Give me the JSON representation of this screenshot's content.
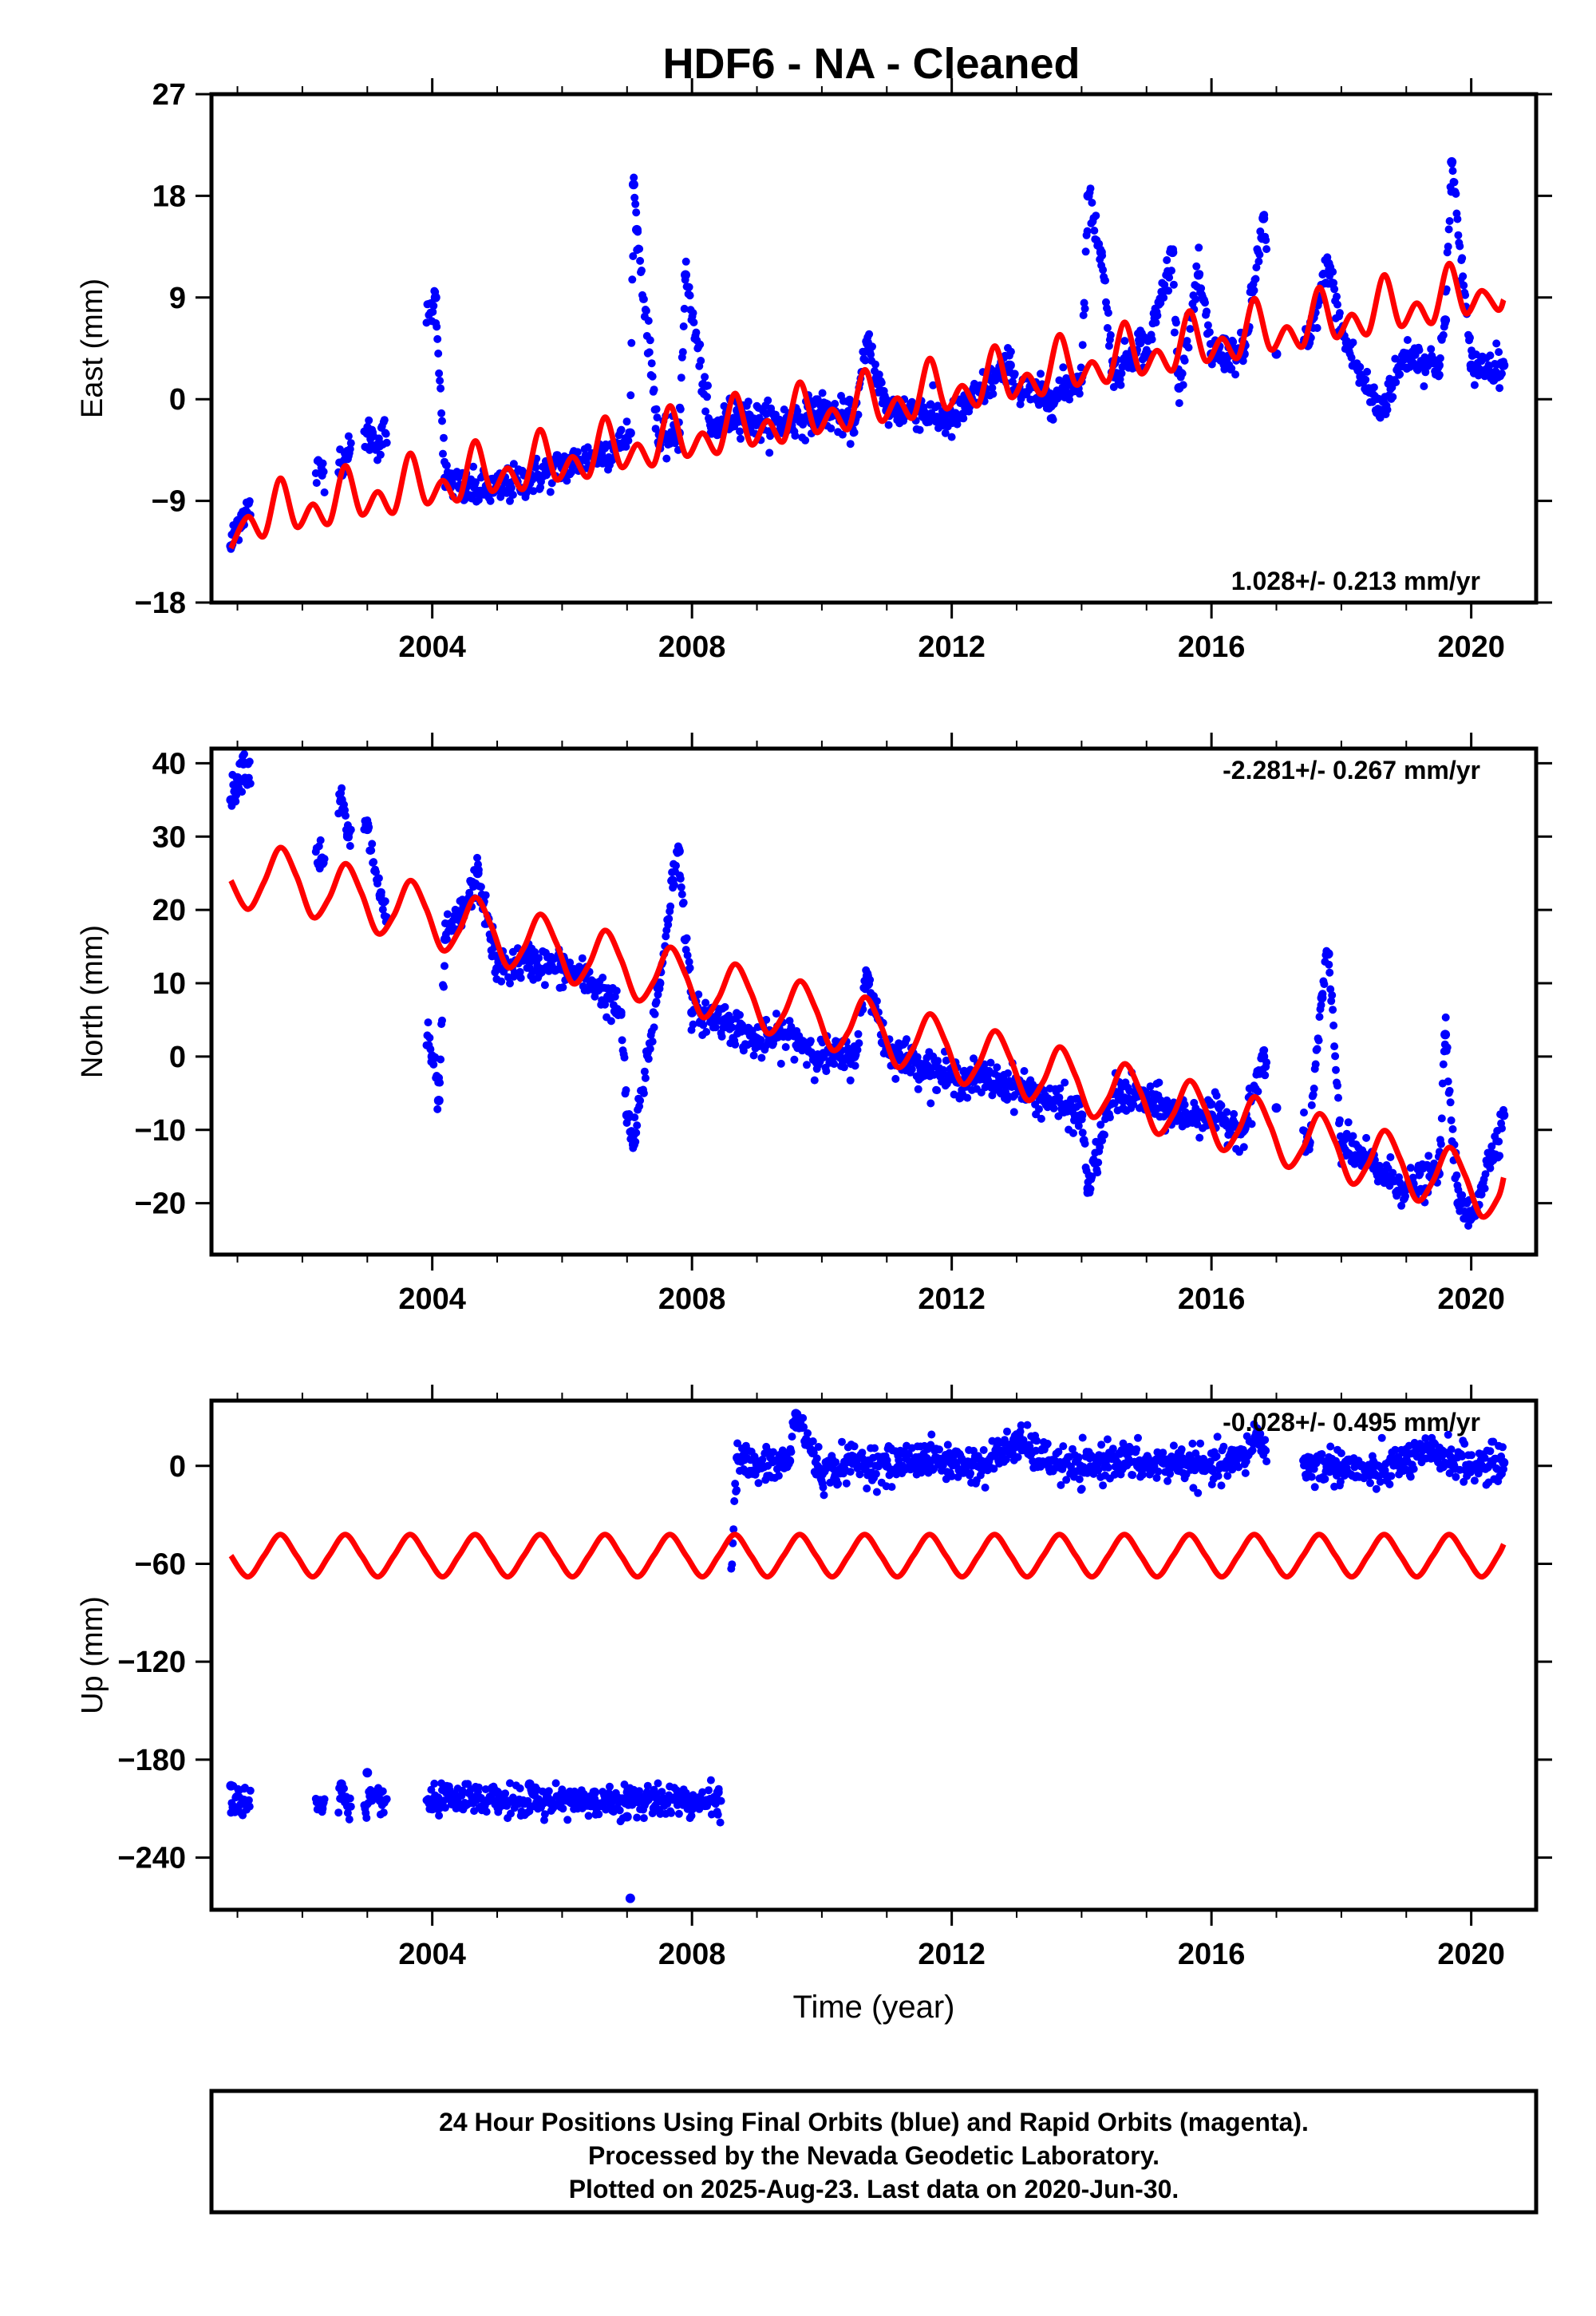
{
  "title": "HDF6  - NA - Cleaned",
  "footer": {
    "lines": [
      "24 Hour Positions Using Final Orbits (blue) and Rapid Orbits (magenta).",
      "Processed by the Nevada Geodetic Laboratory.",
      "Plotted on 2025-Aug-23. Last data on 2020-Jun-30."
    ]
  },
  "colors": {
    "data": "#0000ff",
    "model": "#ff0000",
    "frame": "#000000"
  },
  "chart_data": [
    {
      "type": "scatter",
      "ylabel": "East (mm)",
      "rate": "1.028+/- 0.213 mm/yr",
      "rate_position": "bottom-right",
      "xlim": [
        2000.6,
        2021.0
      ],
      "ylim": [
        -18,
        27
      ],
      "xticks": [
        2004,
        2008,
        2012,
        2016,
        2020
      ],
      "yticks": [
        -18,
        -9,
        0,
        9,
        18,
        27
      ],
      "ytick_labels": [
        "−18",
        "−9",
        "0",
        "9",
        "18",
        "27"
      ],
      "xlabel": "",
      "series": [
        {
          "role": "observations",
          "x": [
            2000.9,
            2001.0,
            2001.1,
            2002.7,
            2003.0,
            2003.2,
            2004.05,
            2004.2,
            2004.5,
            2005.0,
            2005.5,
            2006.0,
            2006.5,
            2006.9,
            2007.05,
            2007.1,
            2007.15,
            2007.5,
            2007.8,
            2007.9,
            2008.3,
            2008.7,
            2009.0,
            2009.5,
            2010.0,
            2010.5,
            2010.7,
            2011.0,
            2011.5,
            2012.0,
            2012.5,
            2012.9,
            2013.0,
            2013.5,
            2014.0,
            2014.1,
            2014.3,
            2014.5,
            2014.9,
            2015.0,
            2015.4,
            2015.5,
            2015.8,
            2016.0,
            2016.5,
            2016.8,
            2017.0,
            2017.5,
            2017.8,
            2018.0,
            2018.3,
            2018.6,
            2019.0,
            2019.5,
            2019.6,
            2019.7,
            2020.0,
            2020.5
          ],
          "y": [
            -13,
            -11,
            -10,
            -5,
            -3,
            -4,
            9,
            -7,
            -8,
            -8,
            -7,
            -6,
            -5,
            -4,
            -3,
            19,
            15,
            -4,
            -3,
            11,
            -3,
            -1,
            -2,
            -2,
            -1,
            -2,
            5,
            -1,
            -1,
            -2,
            1,
            3,
            1,
            0,
            2,
            18,
            13,
            2,
            5,
            4,
            13,
            1,
            11,
            4,
            4,
            16,
            4,
            5,
            12,
            6,
            2,
            -1,
            4,
            3,
            7,
            21,
            3,
            3
          ]
        },
        {
          "role": "model",
          "x": [
            2000.9,
            2001.16,
            2001.41,
            2001.66,
            2001.91,
            2002.16,
            2002.41,
            2002.66,
            2002.91,
            2003.16,
            2003.41,
            2003.66,
            2003.91,
            2004.16,
            2004.41,
            2004.66,
            2004.91,
            2005.16,
            2005.41,
            2005.66,
            2005.91,
            2006.16,
            2006.41,
            2006.66,
            2006.91,
            2007.16,
            2007.41,
            2007.66,
            2007.91,
            2008.16,
            2008.41,
            2008.66,
            2008.91,
            2009.16,
            2009.41,
            2009.66,
            2009.91,
            2010.16,
            2010.41,
            2010.66,
            2010.91,
            2011.16,
            2011.41,
            2011.66,
            2011.91,
            2012.16,
            2012.41,
            2012.66,
            2012.91,
            2013.16,
            2013.41,
            2013.66,
            2013.91,
            2014.16,
            2014.41,
            2014.66,
            2014.91,
            2015.16,
            2015.41,
            2015.66,
            2015.91,
            2016.16,
            2016.41,
            2016.66,
            2016.91,
            2017.16,
            2017.41,
            2017.66,
            2017.91,
            2018.16,
            2018.41,
            2018.66,
            2018.91,
            2019.16,
            2019.41,
            2019.66,
            2019.91,
            2020.16,
            2020.41,
            2020.5
          ],
          "y": [
            -13.2,
            -10.4,
            -12.1,
            -7.0,
            -11.3,
            -9.3,
            -11.0,
            -5.9,
            -10.2,
            -8.2,
            -10.0,
            -4.8,
            -9.2,
            -7.2,
            -8.9,
            -3.7,
            -8.1,
            -6.1,
            -7.9,
            -2.7,
            -7.1,
            -5.1,
            -6.8,
            -1.6,
            -6.0,
            -4.0,
            -5.8,
            -0.6,
            -5.0,
            -3.0,
            -4.7,
            0.5,
            -4.0,
            -1.9,
            -3.7,
            1.5,
            -2.9,
            -0.9,
            -2.6,
            2.6,
            -1.9,
            0.1,
            -1.6,
            3.6,
            -0.8,
            1.2,
            -0.5,
            4.7,
            0.2,
            2.2,
            0.5,
            5.7,
            1.3,
            3.3,
            1.6,
            6.8,
            2.3,
            4.3,
            2.6,
            7.8,
            3.4,
            5.4,
            3.7,
            8.9,
            4.4,
            6.4,
            4.7,
            9.9,
            5.5,
            7.5,
            5.8,
            11.0,
            6.5,
            8.5,
            6.8,
            12.0,
            7.6,
            9.6,
            7.9,
            8.8
          ]
        }
      ]
    },
    {
      "type": "scatter",
      "ylabel": "North (mm)",
      "rate": "-2.281+/- 0.267 mm/yr",
      "rate_position": "top-right",
      "xlim": [
        2000.6,
        2021.0
      ],
      "ylim": [
        -27,
        42
      ],
      "xticks": [
        2004,
        2008,
        2012,
        2016,
        2020
      ],
      "yticks": [
        -20,
        -10,
        0,
        10,
        20,
        30,
        40
      ],
      "ytick_labels": [
        "−20",
        "−10",
        "0",
        "10",
        "20",
        "30",
        "40"
      ],
      "xlabel": "",
      "series": [
        {
          "role": "observations",
          "x": [
            2000.9,
            2001.0,
            2001.1,
            2002.3,
            2002.6,
            2002.7,
            2003.0,
            2003.2,
            2004.0,
            2004.1,
            2004.2,
            2004.5,
            2004.7,
            2005.0,
            2005.5,
            2006.0,
            2006.5,
            2006.9,
            2007.0,
            2007.1,
            2007.5,
            2007.7,
            2007.8,
            2008.0,
            2008.5,
            2009.0,
            2009.5,
            2010.0,
            2010.5,
            2010.7,
            2011.0,
            2011.5,
            2012.0,
            2012.5,
            2013.0,
            2013.5,
            2014.0,
            2014.1,
            2014.5,
            2015.0,
            2015.5,
            2016.0,
            2016.5,
            2016.8,
            2017.0,
            2017.5,
            2017.7,
            2017.8,
            2018.0,
            2018.5,
            2019.0,
            2019.5,
            2019.6,
            2019.8,
            2020.0,
            2020.5
          ],
          "y": [
            35,
            38,
            40,
            27,
            35,
            30,
            31,
            22,
            0,
            -6,
            16,
            20,
            25,
            12,
            13,
            12,
            10,
            6,
            -8,
            -12,
            10,
            24,
            28,
            6,
            5,
            2,
            3,
            0,
            0,
            11,
            1,
            -1,
            -3,
            -3,
            -4,
            -6,
            -8,
            -18,
            -5,
            -6,
            -8,
            -8,
            -10,
            0,
            -7,
            -12,
            8,
            14,
            -12,
            -15,
            -18,
            -16,
            3,
            -20,
            -22,
            -8
          ]
        },
        {
          "role": "model",
          "x": [
            2000.9,
            2001.16,
            2001.41,
            2001.66,
            2001.91,
            2002.16,
            2002.41,
            2002.66,
            2002.91,
            2003.16,
            2003.41,
            2003.66,
            2003.91,
            2004.16,
            2004.41,
            2004.66,
            2004.91,
            2005.16,
            2005.41,
            2005.66,
            2005.91,
            2006.16,
            2006.41,
            2006.66,
            2006.91,
            2007.16,
            2007.41,
            2007.66,
            2007.91,
            2008.16,
            2008.41,
            2008.66,
            2008.91,
            2009.16,
            2009.41,
            2009.66,
            2009.91,
            2010.16,
            2010.41,
            2010.66,
            2010.91,
            2011.16,
            2011.41,
            2011.66,
            2011.91,
            2012.16,
            2012.41,
            2012.66,
            2012.91,
            2013.16,
            2013.41,
            2013.66,
            2013.91,
            2014.16,
            2014.41,
            2014.66,
            2014.91,
            2015.16,
            2015.41,
            2015.66,
            2015.91,
            2016.16,
            2016.41,
            2016.66,
            2016.91,
            2017.16,
            2017.41,
            2017.66,
            2017.91,
            2018.16,
            2018.41,
            2018.66,
            2018.91,
            2019.16,
            2019.41,
            2019.66,
            2019.91,
            2020.16,
            2020.41,
            2020.5
          ],
          "y": [
            24.0,
            20.1,
            23.8,
            28.5,
            24.6,
            19.0,
            21.6,
            26.3,
            22.3,
            16.8,
            19.3,
            24.0,
            20.1,
            14.5,
            17.1,
            21.7,
            17.8,
            12.2,
            14.8,
            19.4,
            15.5,
            10.0,
            12.5,
            17.2,
            13.2,
            7.7,
            10.2,
            14.9,
            11.0,
            5.4,
            8.0,
            12.6,
            8.7,
            3.2,
            5.7,
            10.3,
            6.4,
            0.9,
            3.4,
            8.1,
            4.2,
            -1.4,
            1.2,
            5.8,
            1.9,
            -3.7,
            -1.1,
            3.5,
            -0.4,
            -5.9,
            -3.4,
            1.3,
            -2.7,
            -8.2,
            -5.7,
            -1.0,
            -4.9,
            -10.5,
            -7.9,
            -3.3,
            -7.2,
            -12.7,
            -10.2,
            -5.5,
            -9.5,
            -15.0,
            -12.5,
            -7.8,
            -11.7,
            -17.3,
            -14.7,
            -10.1,
            -14.0,
            -19.6,
            -17.0,
            -12.4,
            -16.3,
            -21.8,
            -19.3,
            -16.5
          ]
        }
      ]
    },
    {
      "type": "scatter",
      "ylabel": "Up (mm)",
      "rate": "-0.028+/- 0.495 mm/yr",
      "rate_position": "top-right",
      "xlim": [
        2000.6,
        2021.0
      ],
      "ylim": [
        -272,
        40
      ],
      "xticks": [
        2004,
        2008,
        2012,
        2016,
        2020
      ],
      "yticks": [
        -240,
        -180,
        -120,
        -60,
        0
      ],
      "ytick_labels": [
        "−240",
        "−180",
        "−120",
        "−60",
        "0"
      ],
      "xlabel": "Time (year)",
      "series": [
        {
          "role": "observations",
          "x": [
            2000.9,
            2001.0,
            2001.1,
            2002.3,
            2002.6,
            2003.0,
            2003.2,
            2004.0,
            2004.5,
            2005.0,
            2005.5,
            2005.8,
            2006.0,
            2006.5,
            2007.0,
            2007.05,
            2007.5,
            2008.0,
            2008.2,
            2008.4,
            2008.7,
            2009.0,
            2009.5,
            2009.6,
            2010.0,
            2010.5,
            2011.0,
            2011.5,
            2012.0,
            2012.5,
            2013.0,
            2013.5,
            2014.0,
            2014.5,
            2015.0,
            2015.5,
            2016.0,
            2016.5,
            2016.7,
            2016.8,
            2017.5,
            2018.0,
            2018.5,
            2019.0,
            2019.5,
            2020.0,
            2020.5
          ],
          "y": [
            -196,
            -210,
            -205,
            -210,
            -195,
            -188,
            -205,
            -210,
            -208,
            -200,
            -195,
            -205,
            -205,
            -200,
            -215,
            -265,
            -205,
            -210,
            -208,
            -200,
            5,
            -2,
            3,
            32,
            -5,
            3,
            0,
            5,
            2,
            0,
            15,
            3,
            -3,
            5,
            0,
            3,
            -2,
            5,
            20,
            10,
            0,
            0,
            -5,
            3,
            8,
            0,
            2
          ]
        },
        {
          "role": "model",
          "x": [
            2000.9,
            2001.16,
            2001.41,
            2001.66,
            2001.91,
            2002.16,
            2002.41,
            2002.66,
            2002.91,
            2003.16,
            2003.41,
            2003.66,
            2003.91,
            2004.16,
            2004.41,
            2004.66,
            2004.91,
            2005.16,
            2005.41,
            2005.66,
            2005.91,
            2006.16,
            2006.41,
            2006.66,
            2006.91,
            2007.16,
            2007.41,
            2007.66,
            2007.91,
            2008.16,
            2008.41,
            2008.66,
            2008.91,
            2009.16,
            2009.41,
            2009.66,
            2009.91,
            2010.16,
            2010.41,
            2010.66,
            2010.91,
            2011.16,
            2011.41,
            2011.66,
            2011.91,
            2012.16,
            2012.41,
            2012.66,
            2012.91,
            2013.16,
            2013.41,
            2013.66,
            2013.91,
            2014.16,
            2014.41,
            2014.66,
            2014.91,
            2015.16,
            2015.41,
            2015.66,
            2015.91,
            2016.16,
            2016.41,
            2016.66,
            2016.91,
            2017.16,
            2017.41,
            2017.66,
            2017.91,
            2018.16,
            2018.41,
            2018.66,
            2018.91,
            2019.16,
            2019.41,
            2019.66,
            2019.91,
            2020.16,
            2020.41,
            2020.5
          ],
          "y": [
            -55.0,
            -68.0,
            -55.0,
            -42.0,
            -55.0,
            -68.0,
            -55.0,
            -42.0,
            -55.0,
            -68.0,
            -55.0,
            -42.0,
            -55.0,
            -68.0,
            -55.0,
            -42.0,
            -55.0,
            -68.0,
            -55.0,
            -42.0,
            -55.0,
            -68.0,
            -55.0,
            -42.0,
            -55.0,
            -68.0,
            -55.0,
            -42.0,
            -55.0,
            -68.0,
            -55.0,
            -42.0,
            -55.0,
            -68.0,
            -55.0,
            -42.0,
            -55.0,
            -68.0,
            -55.0,
            -42.0,
            -55.0,
            -68.0,
            -55.0,
            -42.0,
            -55.0,
            -68.0,
            -55.0,
            -42.0,
            -55.0,
            -68.0,
            -55.0,
            -42.0,
            -55.0,
            -68.0,
            -55.0,
            -42.0,
            -55.0,
            -68.0,
            -55.0,
            -42.0,
            -55.0,
            -68.0,
            -55.0,
            -42.0,
            -55.0,
            -68.0,
            -55.0,
            -42.0,
            -55.0,
            -68.0,
            -55.0,
            -42.0,
            -55.0,
            -68.0,
            -55.0,
            -42.0,
            -55.0,
            -68.0,
            -55.0,
            -48.0
          ]
        }
      ]
    }
  ]
}
